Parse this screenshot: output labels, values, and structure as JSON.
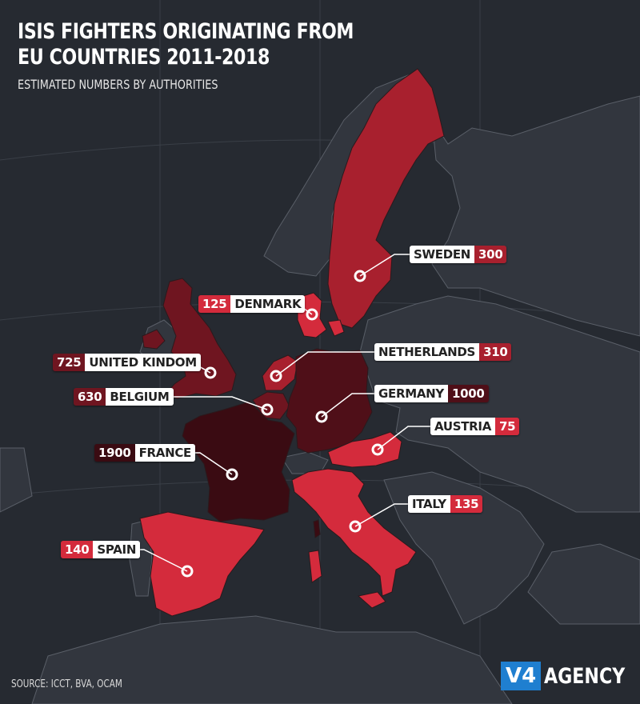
{
  "title_line1": "ISIS FIGHTERS ORIGINATING FROM",
  "title_line2": "EU COUNTRIES 2011-2018",
  "subtitle": "ESTIMATED NUMBERS BY AUTHORITIES",
  "source": "SOURCE: ICCT, BVA, OCAM",
  "logo": {
    "box": "V4",
    "word": "AGENCY"
  },
  "colors": {
    "background": "#262a31",
    "land_other": "#32363e",
    "border": "#5a5f68",
    "scale": [
      "#d42b3c",
      "#a8202e",
      "#6f1520",
      "#4f0f18",
      "#3a0b12"
    ],
    "logo_blue": "#1f7fd0"
  },
  "countries": [
    {
      "id": "sweden",
      "name": "SWEDEN",
      "value": "300"
    },
    {
      "id": "denmark",
      "name": "DENMARK",
      "value": "125"
    },
    {
      "id": "netherlands",
      "name": "NETHERLANDS",
      "value": "310"
    },
    {
      "id": "united-kingdom",
      "name": "UNITED KINDOM",
      "value": "725"
    },
    {
      "id": "germany",
      "name": "GERMANY",
      "value": "1000"
    },
    {
      "id": "belgium",
      "name": "BELGIUM",
      "value": "630"
    },
    {
      "id": "austria",
      "name": "AUSTRIA",
      "value": "75"
    },
    {
      "id": "france",
      "name": "FRANCE",
      "value": "1900"
    },
    {
      "id": "italy",
      "name": "ITALY",
      "value": "135"
    },
    {
      "id": "spain",
      "name": "SPAIN",
      "value": "140"
    }
  ]
}
